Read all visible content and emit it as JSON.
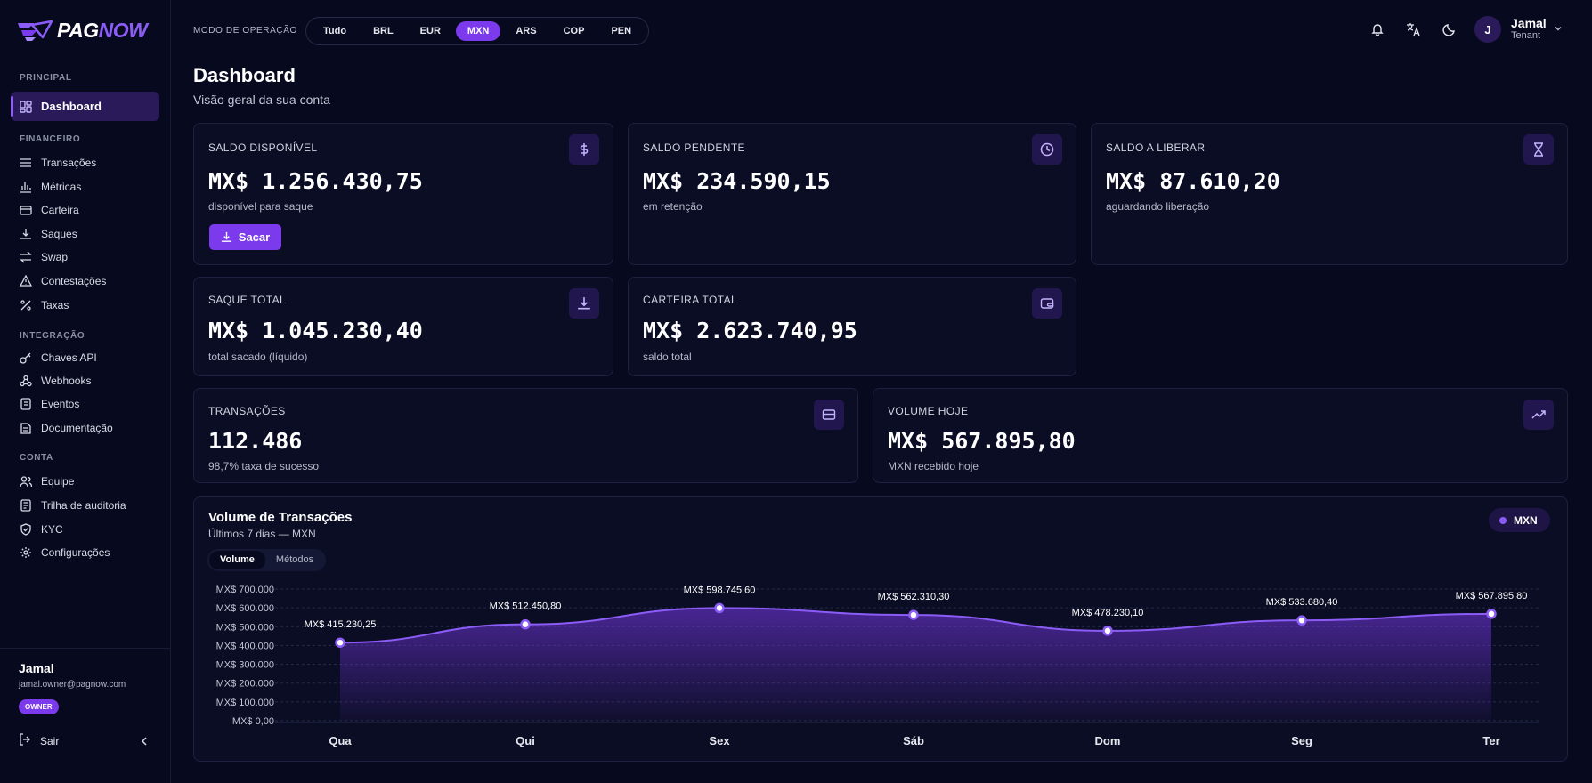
{
  "brand": {
    "name_prefix": "PAG",
    "name_accent": "NOW",
    "accent_color": "#8b5cf6"
  },
  "sidebar": {
    "sections": [
      {
        "label": "PRINCIPAL"
      },
      {
        "label": "FINANCEIRO"
      },
      {
        "label": "INTEGRAÇÃO"
      },
      {
        "label": "CONTA"
      }
    ],
    "items": [
      {
        "label": "Dashboard",
        "icon": "dashboard-icon"
      },
      {
        "label": "Transações",
        "icon": "list-icon"
      },
      {
        "label": "Métricas",
        "icon": "bar-chart-icon"
      },
      {
        "label": "Carteira",
        "icon": "wallet-icon"
      },
      {
        "label": "Saques",
        "icon": "download-icon"
      },
      {
        "label": "Swap",
        "icon": "swap-icon"
      },
      {
        "label": "Contestações",
        "icon": "alert-icon"
      },
      {
        "label": "Taxas",
        "icon": "percent-icon"
      },
      {
        "label": "Chaves API",
        "icon": "key-icon"
      },
      {
        "label": "Webhooks",
        "icon": "webhook-icon"
      },
      {
        "label": "Eventos",
        "icon": "scroll-icon"
      },
      {
        "label": "Documentação",
        "icon": "book-icon"
      },
      {
        "label": "Equipe",
        "icon": "users-icon"
      },
      {
        "label": "Trilha de auditoria",
        "icon": "audit-icon"
      },
      {
        "label": "KYC",
        "icon": "shield-icon"
      },
      {
        "label": "Configurações",
        "icon": "gear-icon"
      }
    ],
    "user": {
      "name": "Jamal",
      "email": "jamal.owner@pagnow.com",
      "badge": "OWNER"
    },
    "logout_label": "Sair"
  },
  "topbar": {
    "mode_label": "MODO DE OPERAÇÃO",
    "modes": [
      "Tudo",
      "BRL",
      "EUR",
      "MXN",
      "ARS",
      "COP",
      "PEN"
    ],
    "active_mode": "MXN",
    "profile": {
      "initial": "J",
      "name": "Jamal",
      "role": "Tenant"
    }
  },
  "header": {
    "title": "Dashboard",
    "subtitle": "Visão geral da sua conta"
  },
  "cards": {
    "saldo_disponivel": {
      "label": "SALDO DISPONÍVEL",
      "value": "MX$ 1.256.430,75",
      "desc": "disponível para saque",
      "button": "Sacar",
      "icon": "dollar-icon"
    },
    "saldo_pendente": {
      "label": "SALDO PENDENTE",
      "value": "MX$ 234.590,15",
      "desc": "em retenção",
      "icon": "clock-icon"
    },
    "saldo_liberar": {
      "label": "SALDO A LIBERAR",
      "value": "MX$ 87.610,20",
      "desc": "aguardando liberação",
      "icon": "hourglass-icon"
    },
    "saque_total": {
      "label": "SAQUE TOTAL",
      "value": "MX$ 1.045.230,40",
      "desc": "total sacado (líquido)",
      "icon": "download-icon"
    },
    "carteira_total": {
      "label": "CARTEIRA TOTAL",
      "value": "MX$ 2.623.740,95",
      "desc": "saldo total",
      "icon": "wallet-icon"
    },
    "transacoes": {
      "label": "TRANSAÇÕES",
      "value": "112.486",
      "desc": "98,7% taxa de sucesso",
      "icon": "card-icon"
    },
    "volume_hoje": {
      "label": "VOLUME HOJE",
      "value": "MX$ 567.895,80",
      "desc": "MXN recebido hoje",
      "icon": "trending-up-icon"
    }
  },
  "chart_card": {
    "title": "Volume de Transações",
    "subtitle": "Últimos 7 dias — MXN",
    "tabs": [
      "Volume",
      "Métodos"
    ],
    "active_tab": "Volume",
    "legend": "MXN"
  },
  "chart_data": {
    "type": "area",
    "categories": [
      "Qua",
      "Qui",
      "Sex",
      "Sáb",
      "Dom",
      "Seg",
      "Ter"
    ],
    "series": [
      {
        "name": "MXN",
        "values": [
          415230.25,
          512450.8,
          598745.6,
          562310.3,
          478230.1,
          533680.4,
          567895.8
        ]
      }
    ],
    "data_labels": [
      "MX$ 415.230,25",
      "MX$ 512.450,80",
      "MX$ 598.745,60",
      "MX$ 562.310,30",
      "MX$ 478.230,10",
      "MX$ 533.680,40",
      "MX$ 567.895,80"
    ],
    "y_ticks": [
      "MX$ 700.000",
      "MX$ 600.000",
      "MX$ 500.000",
      "MX$ 400.000",
      "MX$ 300.000",
      "MX$ 200.000",
      "MX$ 100.000",
      "MX$ 0,00"
    ],
    "ylim": [
      0,
      700000
    ],
    "grid": true,
    "color": "#8b5cf6"
  }
}
